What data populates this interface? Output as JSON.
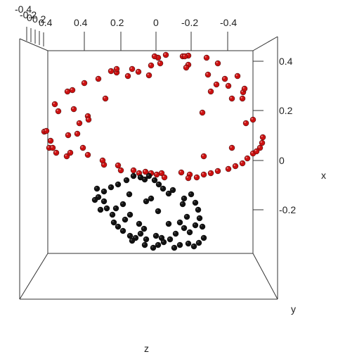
{
  "chart_data": {
    "type": "scatter",
    "title": "",
    "axes": {
      "top_tick_labels": [
        "-0.4",
        "-0.2",
        "0",
        "0.2",
        "0.4",
        "0.4",
        "0.2",
        "0",
        "-0.2",
        "-0.4"
      ],
      "right_tick_labels": [
        "0.4",
        "0.2",
        "0",
        "-0.2"
      ],
      "xlabel": "x",
      "ylabel": "y",
      "zlabel": "z"
    },
    "series": [
      {
        "color": "#cc1111",
        "points": [
          [
            150,
            140
          ],
          [
            96,
            130
          ],
          [
            78,
            148
          ],
          [
            63,
            187
          ],
          [
            72,
            200
          ],
          [
            70,
            210
          ],
          [
            80,
            217
          ],
          [
            95,
            222
          ],
          [
            100,
            217
          ],
          [
            118,
            210
          ],
          [
            110,
            190
          ],
          [
            113,
            175
          ],
          [
            125,
            165
          ],
          [
            105,
            155
          ],
          [
            83,
            158
          ],
          [
            97,
            192
          ],
          [
            126,
            170
          ],
          [
            125,
            220
          ],
          [
            148,
            234
          ],
          [
            146,
            228
          ],
          [
            168,
            235
          ],
          [
            172,
            242
          ],
          [
            190,
            242
          ],
          [
            198,
            246
          ],
          [
            207,
            244
          ],
          [
            215,
            246
          ],
          [
            223,
            248
          ],
          [
            230,
            246
          ],
          [
            234,
            252
          ],
          [
            258,
            245
          ],
          [
            270,
            248
          ],
          [
            280,
            252
          ],
          [
            268,
            253
          ],
          [
            290,
            248
          ],
          [
            300,
            246
          ],
          [
            310,
            243
          ],
          [
            325,
            240
          ],
          [
            335,
            236
          ],
          [
            345,
            232
          ],
          [
            352,
            225
          ],
          [
            360,
            218
          ],
          [
            370,
            210
          ],
          [
            374,
            195
          ],
          [
            360,
            170
          ],
          [
            350,
            175
          ],
          [
            373,
            203
          ],
          [
            365,
            215
          ],
          [
            330,
            210
          ],
          [
            290,
            222
          ],
          [
            288,
            160
          ],
          [
            320,
            112
          ],
          [
            325,
            122
          ],
          [
            338,
            108
          ],
          [
            346,
            131
          ],
          [
            345,
            140
          ],
          [
            348,
            126
          ],
          [
            330,
            140
          ],
          [
            300,
            130
          ],
          [
            308,
            120
          ],
          [
            296,
            106
          ],
          [
            310,
            90
          ],
          [
            294,
            82
          ],
          [
            268,
            92
          ],
          [
            265,
            96
          ],
          [
            268,
            79
          ],
          [
            260,
            80
          ],
          [
            236,
            78
          ],
          [
            225,
            82
          ],
          [
            220,
            80
          ],
          [
            228,
            90
          ],
          [
            215,
            93
          ],
          [
            212,
            107
          ],
          [
            197,
            102
          ],
          [
            188,
            98
          ],
          [
            182,
            108
          ],
          [
            166,
            103
          ],
          [
            158,
            101
          ],
          [
            140,
            112
          ],
          [
            120,
            118
          ],
          [
            103,
            128
          ],
          [
            75,
            210
          ],
          [
            66,
            186
          ],
          [
            166,
            98
          ],
          [
            263,
            80
          ]
        ]
      },
      {
        "color": "#111111",
        "points": [
          [
            138,
            268
          ],
          [
            140,
            280
          ],
          [
            148,
            286
          ],
          [
            152,
            296
          ],
          [
            165,
            296
          ],
          [
            160,
            305
          ],
          [
            162,
            316
          ],
          [
            168,
            322
          ],
          [
            175,
            328
          ],
          [
            185,
            335
          ],
          [
            193,
            338
          ],
          [
            200,
            332
          ],
          [
            208,
            340
          ],
          [
            206,
            348
          ],
          [
            218,
            352
          ],
          [
            225,
            348
          ],
          [
            233,
            344
          ],
          [
            242,
            340
          ],
          [
            248,
            352
          ],
          [
            256,
            348
          ],
          [
            268,
            346
          ],
          [
            276,
            350
          ],
          [
            283,
            345
          ],
          [
            290,
            338
          ],
          [
            288,
            322
          ],
          [
            284,
            310
          ],
          [
            282,
            298
          ],
          [
            278,
            288
          ],
          [
            272,
            276
          ],
          [
            262,
            282
          ],
          [
            260,
            290
          ],
          [
            266,
            308
          ],
          [
            262,
            324
          ],
          [
            270,
            330
          ],
          [
            278,
            320
          ],
          [
            246,
            270
          ],
          [
            240,
            275
          ],
          [
            232,
            268
          ],
          [
            226,
            262
          ],
          [
            220,
            256
          ],
          [
            212,
            250
          ],
          [
            206,
            255
          ],
          [
            200,
            252
          ],
          [
            190,
            250
          ],
          [
            180,
            256
          ],
          [
            168,
            262
          ],
          [
            158,
            266
          ],
          [
            148,
            272
          ],
          [
            184,
            276
          ],
          [
            175,
            290
          ],
          [
            185,
            305
          ],
          [
            178,
            312
          ],
          [
            198,
            318
          ],
          [
            205,
            325
          ],
          [
            222,
            335
          ],
          [
            230,
            338
          ],
          [
            250,
            332
          ],
          [
            256,
            316
          ],
          [
            240,
            318
          ],
          [
            188,
            342
          ],
          [
            208,
            286
          ],
          [
            225,
            300
          ],
          [
            215,
            282
          ],
          [
            143,
            298
          ],
          [
            135,
            284
          ]
        ]
      }
    ]
  }
}
